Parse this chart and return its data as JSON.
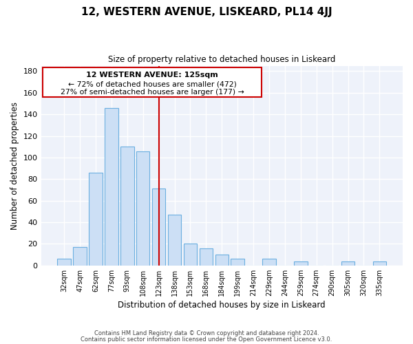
{
  "title": "12, WESTERN AVENUE, LISKEARD, PL14 4JJ",
  "subtitle": "Size of property relative to detached houses in Liskeard",
  "xlabel": "Distribution of detached houses by size in Liskeard",
  "ylabel": "Number of detached properties",
  "bar_labels": [
    "32sqm",
    "47sqm",
    "62sqm",
    "77sqm",
    "93sqm",
    "108sqm",
    "123sqm",
    "138sqm",
    "153sqm",
    "168sqm",
    "184sqm",
    "199sqm",
    "214sqm",
    "229sqm",
    "244sqm",
    "259sqm",
    "274sqm",
    "290sqm",
    "305sqm",
    "320sqm",
    "335sqm"
  ],
  "bar_values": [
    6,
    17,
    86,
    146,
    110,
    106,
    71,
    47,
    20,
    16,
    10,
    6,
    0,
    6,
    0,
    4,
    0,
    0,
    4,
    0,
    4
  ],
  "bar_color": "#ccdff5",
  "bar_edge_color": "#6aaee0",
  "ylim": [
    0,
    185
  ],
  "vline_x_label": "123sqm",
  "vline_color": "#cc0000",
  "annotation_title": "12 WESTERN AVENUE: 125sqm",
  "annotation_line1": "← 72% of detached houses are smaller (472)",
  "annotation_line2": "27% of semi-detached houses are larger (177) →",
  "annotation_box_color": "#ffffff",
  "annotation_box_edge": "#cc0000",
  "footer1": "Contains HM Land Registry data © Crown copyright and database right 2024.",
  "footer2": "Contains public sector information licensed under the Open Government Licence v3.0.",
  "background_color": "#ffffff",
  "plot_background": "#eef2fa",
  "grid_color": "#ffffff",
  "yticks": [
    0,
    20,
    40,
    60,
    80,
    100,
    120,
    140,
    160,
    180
  ]
}
